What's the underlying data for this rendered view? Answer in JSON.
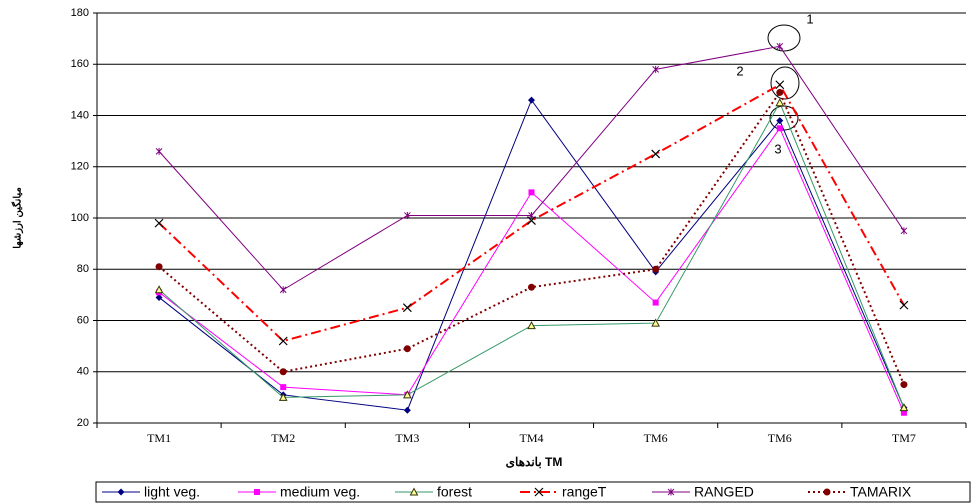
{
  "chart_data": {
    "type": "line",
    "x_label": "باندهای TM",
    "y_label": "میانگین ارزشها",
    "categories": [
      "TM1",
      "TM2",
      "TM3",
      "TM4",
      "TM6",
      "TM6",
      "TM7"
    ],
    "series": [
      {
        "name": "light veg.",
        "color": "#000080",
        "marker": "diamond",
        "marker_color": "#000080",
        "dash": "none",
        "values": [
          69,
          31,
          25,
          146,
          79,
          138,
          26
        ]
      },
      {
        "name": "medium veg.",
        "color": "#ff00ff",
        "marker": "square",
        "marker_color": "#ff00ff",
        "dash": "none",
        "values": [
          71,
          34,
          31,
          110,
          67,
          135,
          24
        ]
      },
      {
        "name": "forest",
        "color": "#339966",
        "marker": "triangle",
        "marker_color": "#333300",
        "dash": "none",
        "values": [
          72,
          30,
          31,
          58,
          59,
          145,
          26
        ]
      },
      {
        "name": "rangeT",
        "color": "#ff0000",
        "marker": "x",
        "marker_color": "#000000",
        "dash": "10 4 2 4",
        "values": [
          98,
          52,
          65,
          99,
          125,
          152,
          66
        ]
      },
      {
        "name": "RANGED",
        "color": "#800080",
        "marker": "star",
        "marker_color": "#800080",
        "dash": "none",
        "values": [
          126,
          72,
          101,
          101,
          158,
          167,
          95
        ]
      },
      {
        "name": "TAMARIX",
        "color": "#800000",
        "marker": "circle",
        "marker_color": "#800000",
        "dash": "2 3",
        "values": [
          81,
          40,
          49,
          73,
          80,
          149,
          35
        ]
      }
    ],
    "annotations": [
      "1",
      "2",
      "3"
    ],
    "ylim": [
      20,
      180
    ],
    "yticks": [
      20,
      40,
      60,
      80,
      100,
      120,
      140,
      160,
      180
    ],
    "grid": true
  }
}
